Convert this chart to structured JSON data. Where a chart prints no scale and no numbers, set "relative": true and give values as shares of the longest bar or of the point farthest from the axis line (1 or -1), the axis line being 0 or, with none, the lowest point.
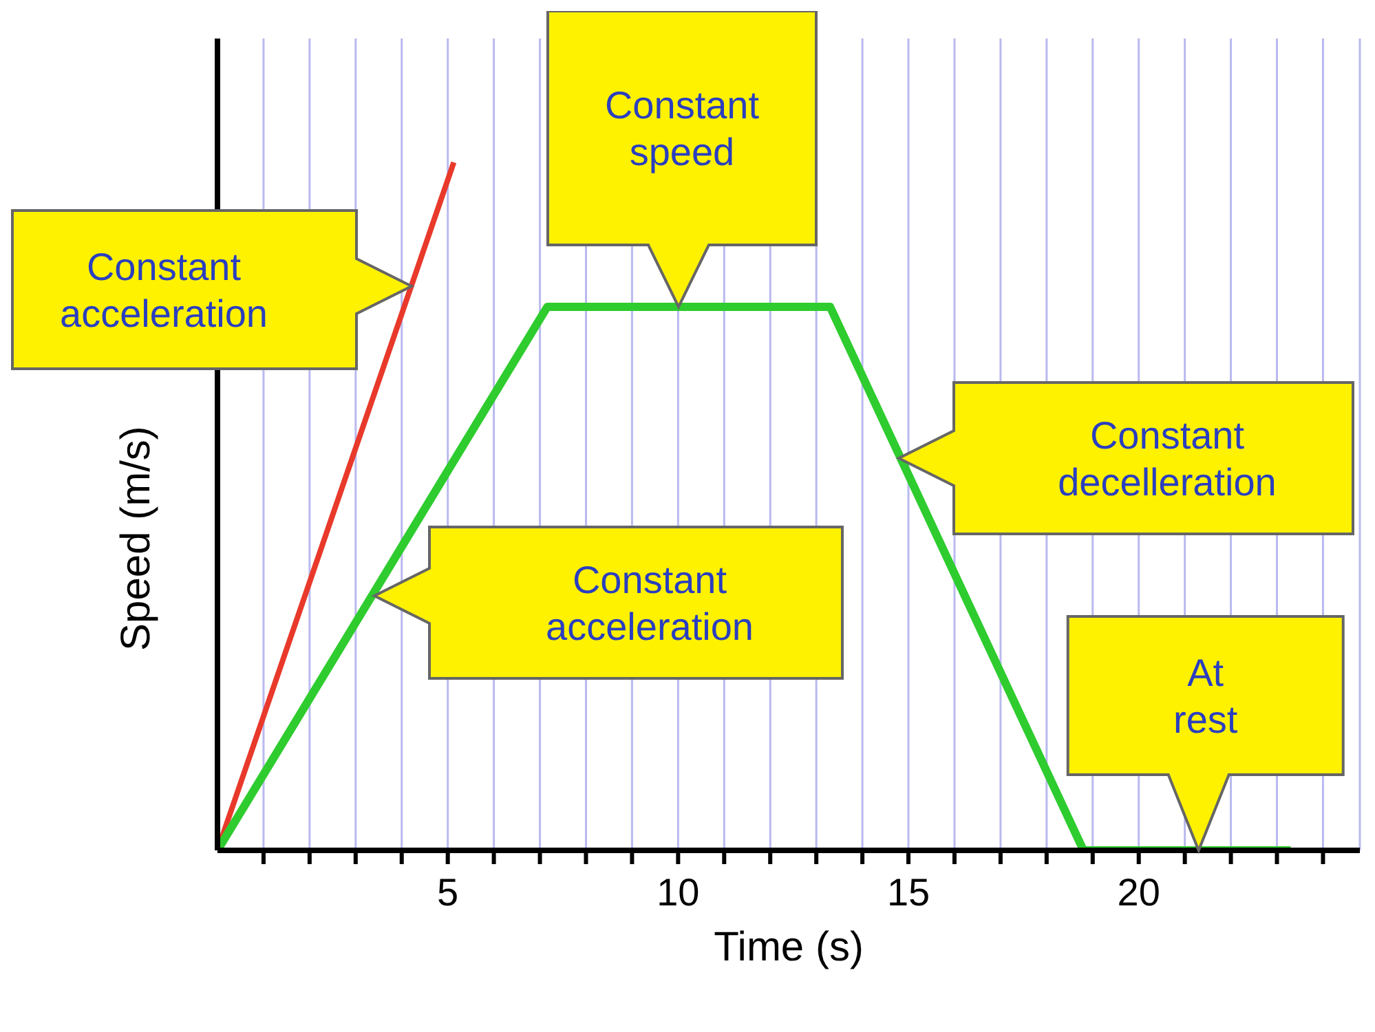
{
  "chart_data": {
    "type": "line",
    "relative": true,
    "xlabel": "Time (s)",
    "ylabel": "Speed (m/s)",
    "xlim": [
      0,
      24.8
    ],
    "xticks": [
      {
        "value": 1,
        "label": null
      },
      {
        "value": 2,
        "label": null
      },
      {
        "value": 3,
        "label": null
      },
      {
        "value": 4,
        "label": null
      },
      5,
      {
        "value": 6,
        "label": null
      },
      {
        "value": 7,
        "label": null
      },
      {
        "value": 8,
        "label": null
      },
      {
        "value": 9,
        "label": null
      },
      10,
      {
        "value": 11,
        "label": null
      },
      {
        "value": 12,
        "label": null
      },
      {
        "value": 13,
        "label": null
      },
      {
        "value": 14,
        "label": null
      },
      15,
      {
        "value": 16,
        "label": null
      },
      {
        "value": 17,
        "label": null
      },
      {
        "value": 18,
        "label": null
      },
      {
        "value": 19,
        "label": null
      },
      20,
      {
        "value": 21,
        "label": null
      },
      {
        "value": 22,
        "label": null
      },
      {
        "value": 23,
        "label": null
      },
      {
        "value": 24,
        "label": null
      }
    ],
    "grid": "x",
    "marker": "none",
    "line_style": "solid",
    "series": [
      {
        "color": "#e8392b",
        "x": [
          0,
          5.13
        ],
        "values": [
          0,
          1
        ]
      },
      {
        "color": "#2ecc2e",
        "x": [
          0,
          7.16,
          13.3,
          18.8,
          23.3
        ],
        "values": [
          0,
          0.79,
          0.79,
          0,
          0
        ]
      }
    ],
    "annotations": [
      "Constant acceleration",
      "Constant speed",
      "Constant decelleration",
      "Constant acceleration",
      {
        "text": "At rest",
        "x": 21.3,
        "y": 0
      }
    ]
  }
}
